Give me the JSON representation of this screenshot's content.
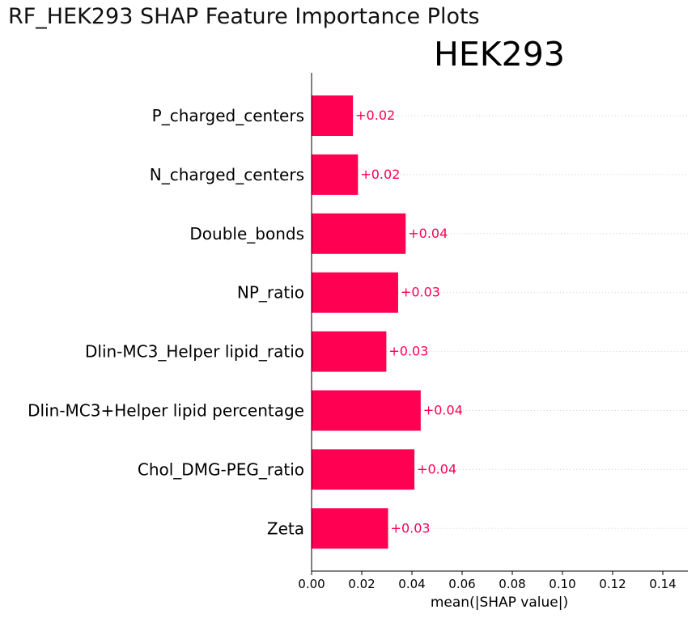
{
  "figure": {
    "title": "RF_HEK293 SHAP Feature Importance Plots"
  },
  "colors": {
    "bar": "#ff0052",
    "value_label": "#ff0052",
    "axis": "#000000",
    "row_guide": "#cccccc"
  },
  "chart_data": {
    "type": "bar",
    "orientation": "horizontal",
    "title": "HEK293",
    "xlabel": "mean(|SHAP value|)",
    "ylabel": "",
    "xlim": [
      0.0,
      0.15
    ],
    "xticks": [
      0.0,
      0.02,
      0.04,
      0.06,
      0.08,
      0.1,
      0.12,
      0.14
    ],
    "xtick_labels": [
      "0.00",
      "0.02",
      "0.04",
      "0.06",
      "0.08",
      "0.10",
      "0.12",
      "0.14"
    ],
    "grid": false,
    "row_guides": "dotted",
    "categories": [
      "P_charged_centers",
      "N_charged_centers",
      "Double_bonds",
      "NP_ratio",
      "Dlin-MC3_Helper lipid_ratio",
      "Dlin-MC3+Helper lipid percentage",
      "Chol_DMG-PEG_ratio",
      "Zeta"
    ],
    "values": [
      0.0165,
      0.0185,
      0.0375,
      0.0345,
      0.0298,
      0.0435,
      0.041,
      0.0305
    ],
    "value_labels": [
      "+0.02",
      "+0.02",
      "+0.04",
      "+0.03",
      "+0.03",
      "+0.04",
      "+0.04",
      "+0.03"
    ]
  }
}
